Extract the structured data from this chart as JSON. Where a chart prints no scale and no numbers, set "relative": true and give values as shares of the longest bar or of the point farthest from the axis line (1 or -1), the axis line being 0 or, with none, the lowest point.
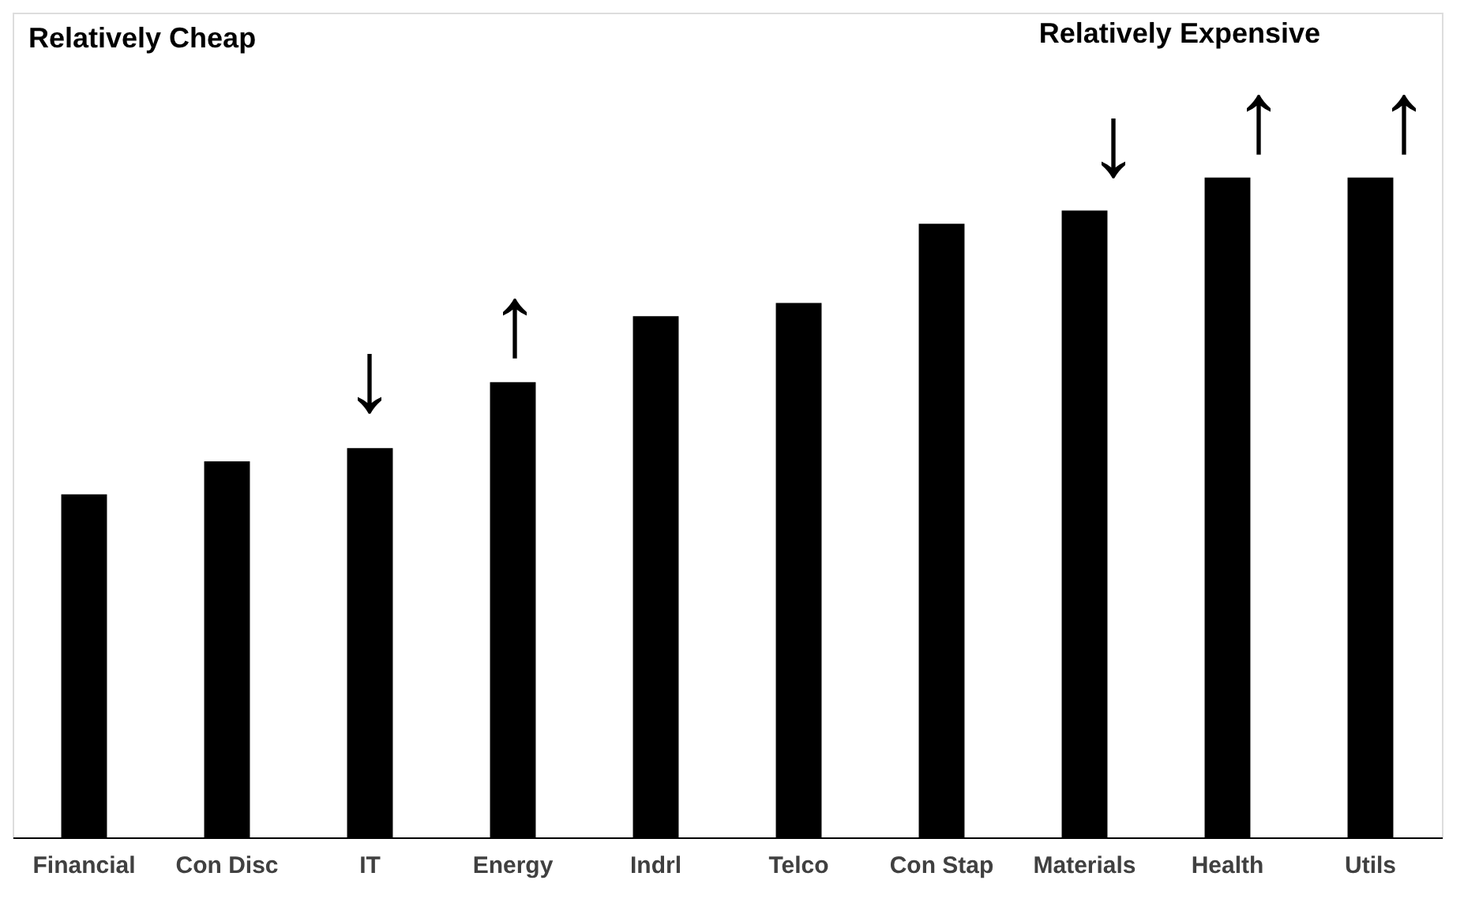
{
  "chart_data": {
    "type": "bar",
    "relative": true,
    "color": "#000000",
    "categories": [
      "Financial",
      "Con Disc",
      "IT",
      "Energy",
      "Indrl",
      "Telco",
      "Con Stap",
      "Materials",
      "Health",
      "Utils"
    ],
    "values": [
      0.52,
      0.57,
      0.59,
      0.69,
      0.79,
      0.81,
      0.93,
      0.95,
      1,
      1
    ],
    "annotations": [
      "Relatively Cheap",
      "Relatively Expensive",
      "↓",
      "↑",
      "↓",
      "↑",
      "↑"
    ]
  }
}
